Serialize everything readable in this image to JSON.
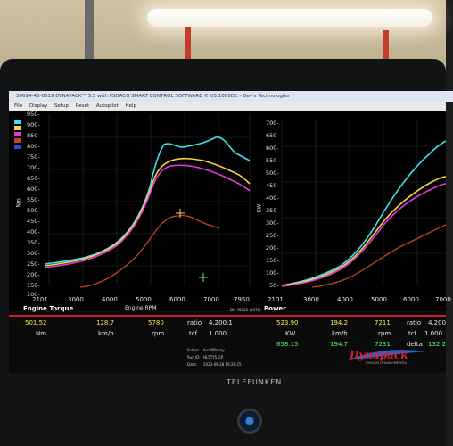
{
  "window": {
    "title": "30694-43-0619 DYNAPACK™ 5.5 with PSDACQ SMART CONTROL SOFTWARE © V5.1000DC - Dev's Technologies",
    "menu": [
      "File",
      "Display",
      "Setup",
      "Reset",
      "Autopilot",
      "Help"
    ]
  },
  "torque_panel": {
    "y_ticks": [
      "950-",
      "900-",
      "850-",
      "800-",
      "750-",
      "700-",
      "650-",
      "600-",
      "550-",
      "500-",
      "450-",
      "400-",
      "350-",
      "300-",
      "250-",
      "200-",
      "150-",
      "100-"
    ],
    "y_unit": "Nm",
    "x_ticks": [
      "2101",
      "3000",
      "4000",
      "5000",
      "6000",
      "7000",
      "7950"
    ],
    "x_label": "Engine RPM",
    "footer_note": "DN 70020 (1976)"
  },
  "power_panel": {
    "y_ticks": [
      "700-",
      "650-",
      "600-",
      "550-",
      "500-",
      "450-",
      "400-",
      "350-",
      "300-",
      "250-",
      "200-",
      "150-",
      "100-",
      "50-"
    ],
    "y_unit": "KW",
    "x_ticks": [
      "2101",
      "3000",
      "4000",
      "5000",
      "6000",
      "7000"
    ]
  },
  "readout": {
    "torque_title": "Engine Torque",
    "power_title": "Power",
    "torque_row": {
      "value": "501.52",
      "speed": "128.7",
      "rpm": "5780",
      "ratio_label": "ratio",
      "ratio": "4.200:1"
    },
    "torque_units": {
      "value": "Nm",
      "speed": "km/h",
      "rpm": "rpm",
      "tcf_label": "tcf",
      "tcf": "1.000"
    },
    "power_row": {
      "value": "523.90",
      "speed": "194.2",
      "rpm": "7211",
      "ratio_label": "ratio",
      "ratio": "4.200"
    },
    "power_units": {
      "value": "KW",
      "speed": "km/h",
      "rpm": "rpm",
      "tcf_label": "tcf",
      "tcf": "1.000"
    },
    "delta_row": {
      "value": "658.15",
      "speed": "194.7",
      "rpm": "7231",
      "delta_label": "delta",
      "delta": "132.2"
    },
    "folder_label": "Folder:",
    "folder": "Audi/Manny",
    "run_label": "Run ID:",
    "run": "HL5TY5 GP",
    "date_label": "Date:",
    "date": "2023-09-28 16:28:25"
  },
  "logo": {
    "word": "Dynapack",
    "tagline": "CHASSIS DYNAMOMETERS"
  },
  "bezel": {
    "brand": "TELEFUNKEN"
  },
  "colors": {
    "cyan": "#3fe0e6",
    "yellow": "#f4d44a",
    "magenta": "#e23ad8",
    "orange_red": "#c3412a",
    "panel_text": "#f5e65a"
  }
}
